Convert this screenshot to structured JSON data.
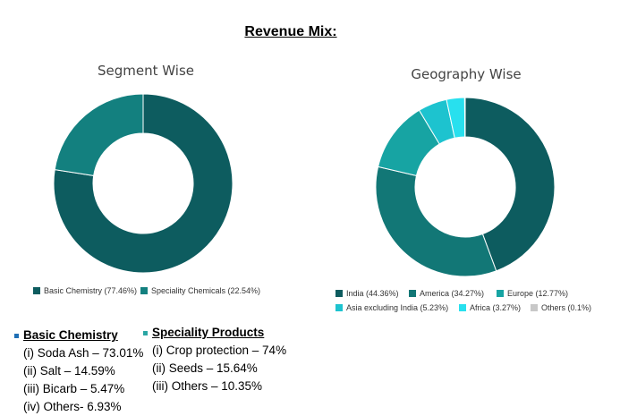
{
  "page": {
    "title": "Revenue Mix:"
  },
  "chart_data": [
    {
      "type": "pie",
      "title": "Segment Wise",
      "series": [
        {
          "name": "Basic Chemistry",
          "value": 77.46,
          "color": "#0d5c5f"
        },
        {
          "name": "Speciality Chemicals",
          "value": 22.54,
          "color": "#13807f"
        }
      ],
      "legend": [
        {
          "label": "Basic Chemistry (77.46%)",
          "color": "#0d5c5f"
        },
        {
          "label": "Speciality Chemicals (22.54%)",
          "color": "#13807f"
        }
      ],
      "legend_position": "bottom"
    },
    {
      "type": "pie",
      "title": "Geography Wise",
      "series": [
        {
          "name": "India",
          "value": 44.36,
          "color": "#0d5c5f"
        },
        {
          "name": "America",
          "value": 34.27,
          "color": "#127776"
        },
        {
          "name": "Europe",
          "value": 12.77,
          "color": "#17a4a3"
        },
        {
          "name": "Asia excluding India",
          "value": 5.23,
          "color": "#1dc3cf"
        },
        {
          "name": "Africa",
          "value": 3.27,
          "color": "#28e0ee"
        },
        {
          "name": "Others",
          "value": 0.1,
          "color": "#c8c8c8"
        }
      ],
      "legend": [
        {
          "label": "India (44.36%)",
          "color": "#0d5c5f"
        },
        {
          "label": "America (34.27%)",
          "color": "#127776"
        },
        {
          "label": "Europe (12.77%)",
          "color": "#17a4a3"
        },
        {
          "label": "Asia excluding India (5.23%)",
          "color": "#1dc3cf"
        },
        {
          "label": "Africa (3.27%)",
          "color": "#28e0ee"
        },
        {
          "label": "Others (0.1%)",
          "color": "#c8c8c8"
        }
      ],
      "legend_position": "bottom"
    }
  ],
  "notes": [
    {
      "heading": "Basic Chemistry",
      "bullet_color": "#1f6fb5",
      "items": [
        "(i) Soda Ash – 73.01%",
        "(ii) Salt – 14.59%",
        "(iii) Bicarb – 5.47%",
        "(iv) Others- 6.93%"
      ]
    },
    {
      "heading": "Speciality Products",
      "bullet_color": "#2aa6a4",
      "items": [
        "(i) Crop protection – 74%",
        "(ii) Seeds – 15.64%",
        "(iii) Others – 10.35%"
      ]
    }
  ]
}
